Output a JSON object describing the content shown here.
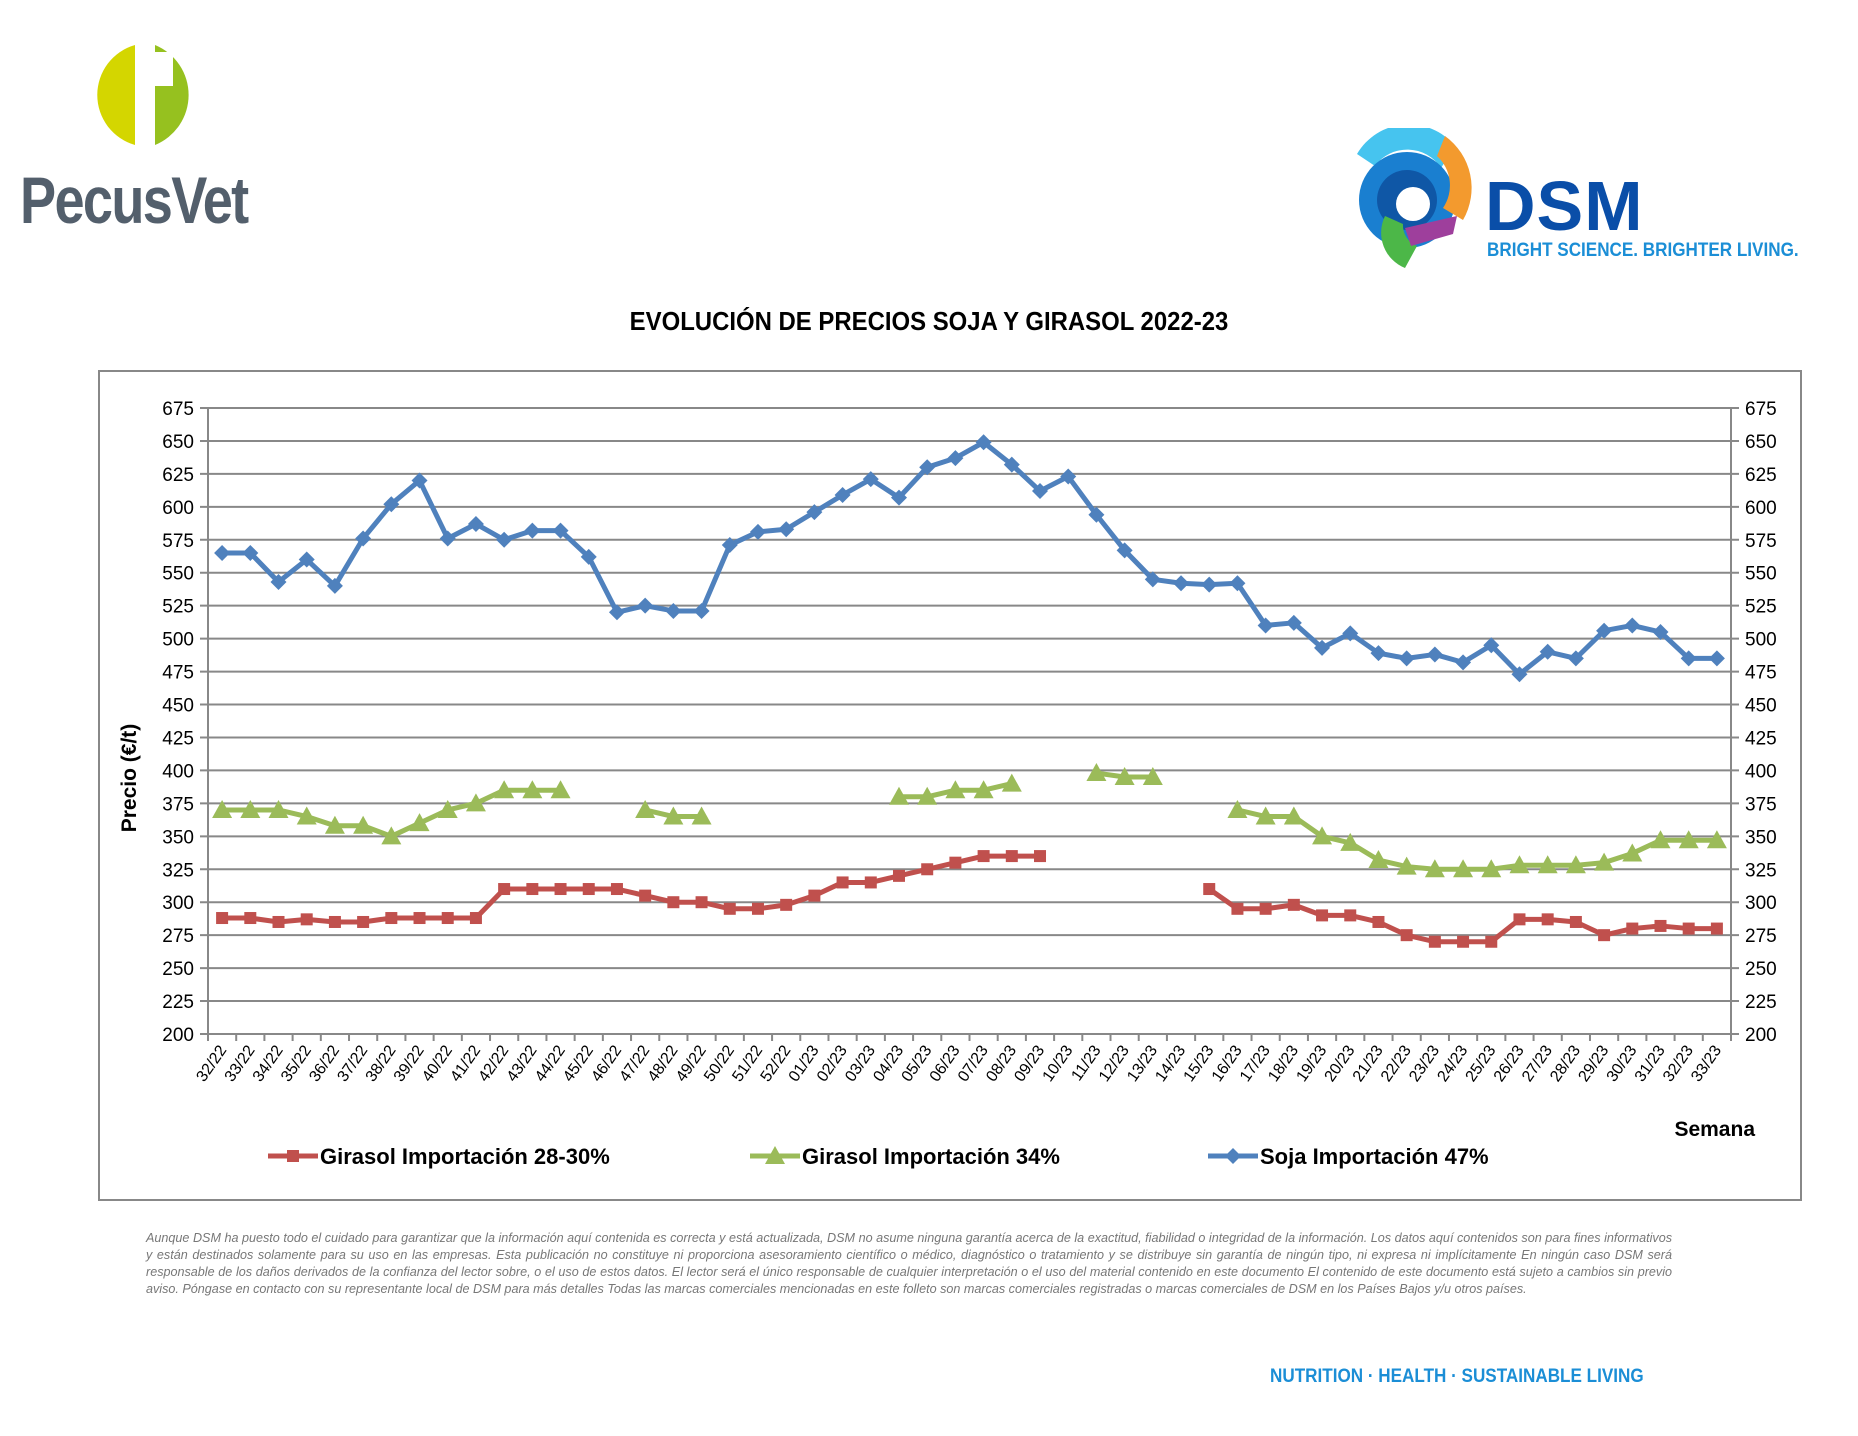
{
  "header": {
    "left_logo": {
      "name": "PecusVet",
      "colors": {
        "left_half": "#d4d600",
        "right_half": "#96c11f",
        "text": "#535f6c"
      }
    },
    "right_logo": {
      "name": "DSM",
      "tagline": "BRIGHT SCIENCE. BRIGHTER LIVING.",
      "colors": {
        "word": "#0a4ea8",
        "tagline": "#1b8ed6"
      }
    }
  },
  "footer": {
    "disclaimer": "Aunque DSM ha puesto todo el cuidado para garantizar que la información aquí contenida es correcta y está actualizada, DSM no asume ninguna garantía acerca de la exactitud, fiabilidad o integridad de la información. Los datos aquí contenidos son para fines informativos y están destinados solamente para su uso en las empresas. Esta publicación no constituye ni proporciona asesoramiento científico o médico, diagnóstico o tratamiento y se distribuye sin garantía de ningún tipo, ni expresa ni implícitamente En ningún caso DSM será responsable de los daños derivados de la confianza del lector sobre, o el uso de estos datos. El lector será el único responsable de cualquier interpretación o el uso del material contenido en este documento El contenido de este documento está sujeto a cambios sin previo aviso. Póngase en contacto con su representante local de DSM para más detalles Todas las marcas comerciales mencionadas en este folleto son marcas comerciales registradas o marcas comerciales de DSM en los Países Bajos y/u otros países.",
    "tagline": "NUTRITION · HEALTH · SUSTAINABLE LIVING"
  },
  "chart_data": {
    "type": "line",
    "title": "EVOLUCIÓN DE PRECIOS SOJA Y GIRASOL 2022-23",
    "xlabel": "Semana",
    "ylabel": "Precio (€/t)",
    "ylim": [
      200,
      675
    ],
    "yticks": [
      200,
      225,
      250,
      275,
      300,
      325,
      350,
      375,
      400,
      425,
      450,
      475,
      500,
      525,
      550,
      575,
      600,
      625,
      650,
      675
    ],
    "secondary_y_axis": true,
    "grid": "horizontal",
    "legend_position": "bottom",
    "categories": [
      "32/22",
      "33/22",
      "34/22",
      "35/22",
      "36/22",
      "37/22",
      "38/22",
      "39/22",
      "40/22",
      "41/22",
      "42/22",
      "43/22",
      "44/22",
      "45/22",
      "46/22",
      "47/22",
      "48/22",
      "49/22",
      "50/22",
      "51/22",
      "52/22",
      "01/23",
      "02/23",
      "03/23",
      "04/23",
      "05/23",
      "06/23",
      "07/23",
      "08/23",
      "09/23",
      "10/23",
      "11/23",
      "12/23",
      "13/23",
      "14/23",
      "15/23",
      "16/23",
      "17/23",
      "18/23",
      "19/23",
      "20/23",
      "21/23",
      "22/23",
      "23/23",
      "24/23",
      "25/23",
      "26/23",
      "27/23",
      "28/23",
      "29/23",
      "30/23",
      "31/23",
      "32/23",
      "33/23"
    ],
    "series": [
      {
        "name": "Girasol Importación 28-30%",
        "color": "#c0504d",
        "marker": "square",
        "values": [
          288,
          288,
          285,
          287,
          285,
          285,
          288,
          288,
          288,
          288,
          310,
          310,
          310,
          310,
          310,
          305,
          300,
          300,
          295,
          295,
          298,
          305,
          315,
          315,
          320,
          325,
          330,
          335,
          335,
          335,
          null,
          null,
          null,
          null,
          null,
          310,
          295,
          295,
          298,
          290,
          290,
          285,
          275,
          270,
          270,
          270,
          287,
          287,
          285,
          275,
          280,
          282,
          280,
          280
        ]
      },
      {
        "name": "Girasol Importación 34%",
        "color": "#9bbb59",
        "marker": "triangle",
        "values": [
          370,
          370,
          370,
          365,
          358,
          358,
          350,
          360,
          370,
          375,
          385,
          385,
          385,
          null,
          null,
          370,
          365,
          365,
          null,
          null,
          null,
          null,
          null,
          null,
          380,
          380,
          385,
          385,
          390,
          null,
          null,
          398,
          395,
          395,
          null,
          null,
          370,
          365,
          365,
          350,
          345,
          332,
          327,
          325,
          325,
          325,
          328,
          328,
          328,
          330,
          337,
          347,
          347,
          347
        ]
      },
      {
        "name": "Soja Importación 47%",
        "color": "#4f81bd",
        "marker": "diamond",
        "values": [
          565,
          565,
          543,
          560,
          540,
          576,
          602,
          620,
          576,
          587,
          575,
          582,
          582,
          562,
          520,
          525,
          521,
          521,
          571,
          581,
          583,
          596,
          609,
          621,
          607,
          630,
          637,
          649,
          632,
          612,
          623,
          594,
          567,
          545,
          542,
          541,
          542,
          510,
          512,
          493,
          504,
          489,
          485,
          488,
          482,
          495,
          473,
          490,
          485,
          506,
          510,
          505,
          485,
          485
        ]
      }
    ]
  }
}
